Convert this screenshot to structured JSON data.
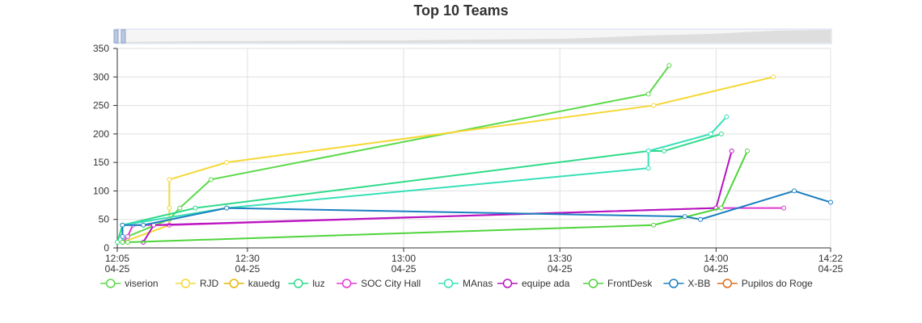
{
  "chart_data": {
    "type": "line",
    "title": "Top 10 Teams",
    "xlabel": "",
    "ylabel": "",
    "y_range": [
      0,
      350
    ],
    "y_ticks": [
      0,
      50,
      100,
      150,
      200,
      250,
      300,
      350
    ],
    "x_range": [
      "04-25 12:05",
      "04-25 14:22"
    ],
    "x_ticks": [
      {
        "value": "04-25 12:05",
        "time": "12:05",
        "date": "04-25"
      },
      {
        "value": "04-25 12:30",
        "time": "12:30",
        "date": "04-25"
      },
      {
        "value": "04-25 13:00",
        "time": "13:00",
        "date": "04-25"
      },
      {
        "value": "04-25 13:30",
        "time": "13:30",
        "date": "04-25"
      },
      {
        "value": "04-25 14:00",
        "time": "14:00",
        "date": "04-25"
      },
      {
        "value": "04-25 14:22",
        "time": "14:22",
        "date": "04-25"
      }
    ],
    "grid": true,
    "data_zoom_slider": true,
    "legend_position": "bottom",
    "series": [
      {
        "name": "viserion",
        "color": "#5cd94a",
        "points": [
          [
            "12:06",
            10
          ],
          [
            "12:07",
            20
          ],
          [
            "12:15",
            50
          ],
          [
            "12:17",
            70
          ],
          [
            "12:23",
            120
          ],
          [
            "13:47",
            270
          ],
          [
            "13:51",
            320
          ]
        ]
      },
      {
        "name": "RJD",
        "color": "#f5d836",
        "points": [
          [
            "12:06",
            10
          ],
          [
            "12:15",
            40
          ],
          [
            "12:15",
            70
          ],
          [
            "12:15",
            120
          ],
          [
            "12:26",
            150
          ],
          [
            "13:48",
            250
          ],
          [
            "14:11",
            300
          ]
        ]
      },
      {
        "name": "kauedg",
        "color": "#e6b800",
        "points": []
      },
      {
        "name": "luz",
        "color": "#2edb8a",
        "points": [
          [
            "12:05",
            10
          ],
          [
            "12:06",
            40
          ],
          [
            "12:20",
            70
          ],
          [
            "13:47",
            170
          ],
          [
            "13:50",
            170
          ],
          [
            "14:01",
            200
          ]
        ]
      },
      {
        "name": "SOC City Hall",
        "color": "#e03ad1",
        "points": [
          [
            "12:06",
            10
          ],
          [
            "12:07",
            20
          ],
          [
            "12:08",
            40
          ],
          [
            "12:15",
            40
          ],
          [
            "14:00",
            70
          ],
          [
            "14:13",
            70
          ]
        ]
      },
      {
        "name": "MAnas",
        "color": "#36e0b8",
        "points": [
          [
            "12:06",
            10
          ],
          [
            "12:06",
            40
          ],
          [
            "12:26",
            70
          ],
          [
            "13:47",
            140
          ],
          [
            "13:47",
            170
          ],
          [
            "13:59",
            200
          ],
          [
            "14:02",
            230
          ]
        ]
      },
      {
        "name": "equipe ada",
        "color": "#b514c0",
        "points": [
          [
            "12:10",
            10
          ],
          [
            "12:12",
            40
          ],
          [
            "14:00",
            70
          ],
          [
            "14:03",
            170
          ]
        ]
      },
      {
        "name": "FrontDesk",
        "color": "#4fd43c",
        "points": [
          [
            "12:06",
            10
          ],
          [
            "12:07",
            10
          ],
          [
            "13:48",
            40
          ],
          [
            "14:01",
            70
          ],
          [
            "14:06",
            170
          ]
        ]
      },
      {
        "name": "X-BB",
        "color": "#1b7fc0",
        "points": [
          [
            "12:06",
            20
          ],
          [
            "12:06",
            40
          ],
          [
            "12:10",
            40
          ],
          [
            "12:26",
            70
          ],
          [
            "13:54",
            55
          ],
          [
            "13:57",
            50
          ],
          [
            "14:15",
            100
          ],
          [
            "14:22",
            80
          ]
        ]
      },
      {
        "name": "Pupilos do Roge",
        "color": "#e06b1a",
        "points": []
      }
    ]
  }
}
